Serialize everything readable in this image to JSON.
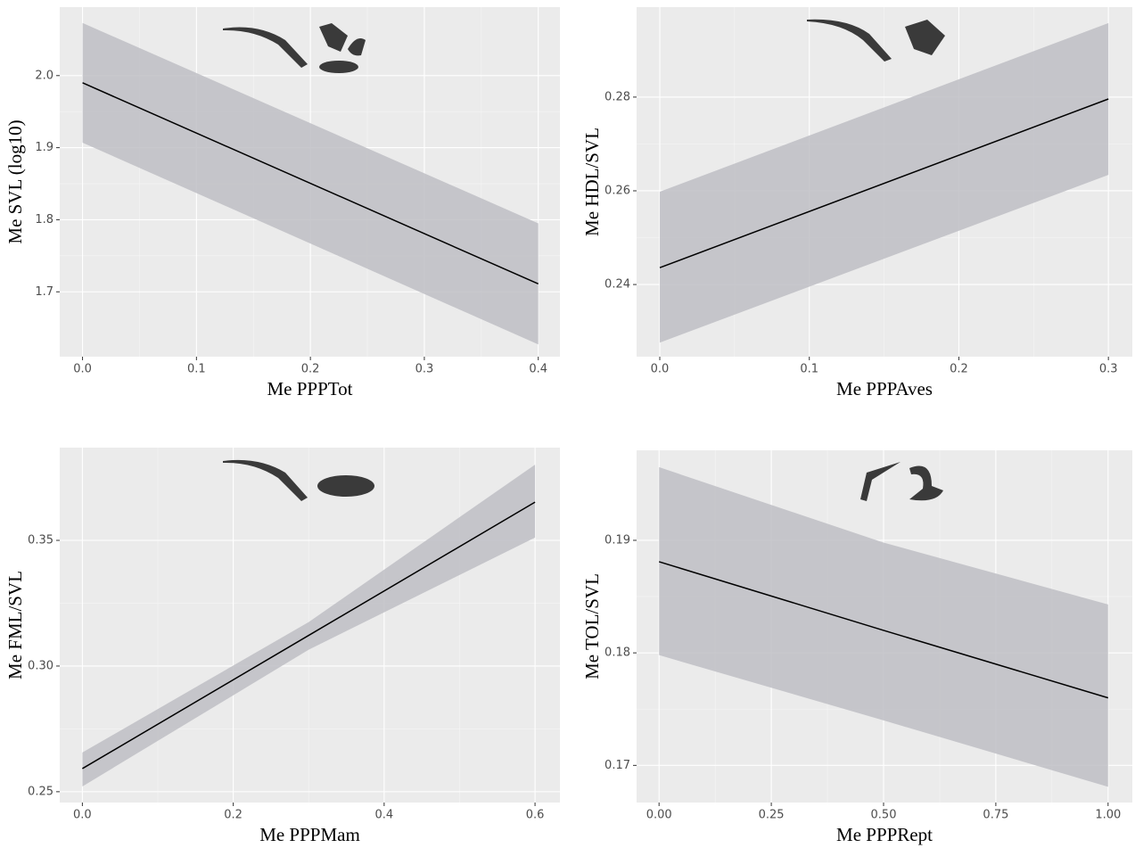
{
  "chart_data": [
    {
      "type": "line",
      "x_label": "Me PPPTot",
      "y_label": "Me SVL (log10)",
      "x": [
        0,
        0.4
      ],
      "values": [
        1.99,
        1.711
      ],
      "lower": [
        1.907,
        1.627
      ],
      "upper": [
        2.073,
        1.795
      ],
      "color": "#000000",
      "band_color": "#bebec4",
      "grid": true,
      "xlim": [
        -0.02,
        0.419
      ],
      "xticks": [
        {
          "value": 0,
          "label": "0.0"
        },
        0.1,
        0.2,
        0.3,
        0.4
      ],
      "ylim": [
        1.61,
        2.095
      ],
      "yticks": [
        1.7,
        1.8,
        1.9,
        {
          "value": 2,
          "label": "2.0"
        }
      ]
    },
    {
      "type": "line",
      "x_label": "Me PPPAves",
      "y_label": "Me HDL/SVL",
      "x": [
        0,
        0.3
      ],
      "values": [
        0.2436,
        0.2796
      ],
      "lower": [
        0.2276,
        0.2634
      ],
      "upper": [
        0.2598,
        0.2958
      ],
      "color": "#000000",
      "band_color": "#bebec4",
      "grid": true,
      "xlim": [
        -0.0155,
        0.316
      ],
      "xticks": [
        {
          "value": 0,
          "label": "0.0"
        },
        0.1,
        0.2,
        0.3
      ],
      "ylim": [
        0.2246,
        0.2992
      ],
      "yticks": [
        0.24,
        0.26,
        0.28
      ]
    },
    {
      "type": "line",
      "x_label": "Me PPPMam",
      "y_label": "Me FML/SVL",
      "x": [
        0,
        0.3,
        0.6
      ],
      "values": [
        0.2592,
        0.3122,
        0.3652
      ],
      "lower": [
        0.2521,
        0.3065,
        0.3511
      ],
      "upper": [
        0.2656,
        0.3175,
        0.3801
      ],
      "color": "#000000",
      "band_color": "#bebec4",
      "grid": true,
      "xlim": [
        -0.03,
        0.633
      ],
      "xticks": [
        {
          "value": 0,
          "label": "0.0"
        },
        0.2,
        0.4,
        0.6
      ],
      "ylim": [
        0.2457,
        0.3869
      ],
      "yticks": [
        0.25,
        {
          "value": 0.3,
          "label": "0.30"
        },
        0.35
      ]
    },
    {
      "type": "line",
      "x_label": "Me PPPRept",
      "y_label": "Me TOL/SVL",
      "x": [
        0,
        0.5,
        1
      ],
      "values": [
        0.1881,
        0.182,
        0.176
      ],
      "lower": [
        0.1798,
        0.174,
        0.1681
      ],
      "upper": [
        0.1965,
        0.1898,
        0.1843
      ],
      "color": "#000000",
      "band_color": "#bebec4",
      "grid": true,
      "xlim": [
        -0.05,
        1.054
      ],
      "xticks": [
        {
          "value": 0,
          "label": "0.00"
        },
        0.25,
        {
          "value": 0.5,
          "label": "0.50"
        },
        {
          "value": 0.75,
          "label": "0.75"
        },
        {
          "value": 1,
          "label": "1.00"
        }
      ],
      "ylim": [
        0.1667,
        0.198
      ],
      "yticks": [
        0.17,
        0.18,
        0.19
      ]
    }
  ]
}
